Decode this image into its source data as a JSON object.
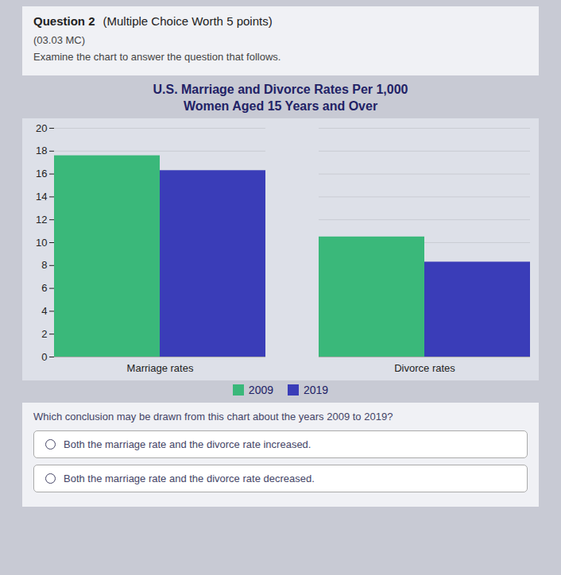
{
  "chart_data": {
    "type": "bar",
    "title": "U.S. Marriage and Divorce Rates Per 1,000",
    "subtitle": "Women Aged 15 Years and Over",
    "categories": [
      "Marriage rates",
      "Divorce rates"
    ],
    "series": [
      {
        "name": "2009",
        "color": "#3ab87a",
        "values": [
          17.6,
          10.5
        ]
      },
      {
        "name": "2019",
        "color": "#3a3db8",
        "values": [
          16.3,
          8.3
        ]
      }
    ],
    "ylim": [
      0,
      20
    ],
    "yticks": [
      0,
      2,
      4,
      6,
      8,
      10,
      12,
      14,
      16,
      18,
      20
    ],
    "grid": true,
    "legend": "bottom",
    "annotations": [
      "Question 2",
      "(Multiple Choice Worth 5 points)",
      "(03.03 MC)",
      "Examine the chart to answer the question that follows.",
      "Which conclusion may be drawn from this chart about the years 2009 to 2019?",
      "Both the marriage rate and the divorce rate increased.",
      "Both the marriage rate and the divorce rate decreased."
    ]
  }
}
